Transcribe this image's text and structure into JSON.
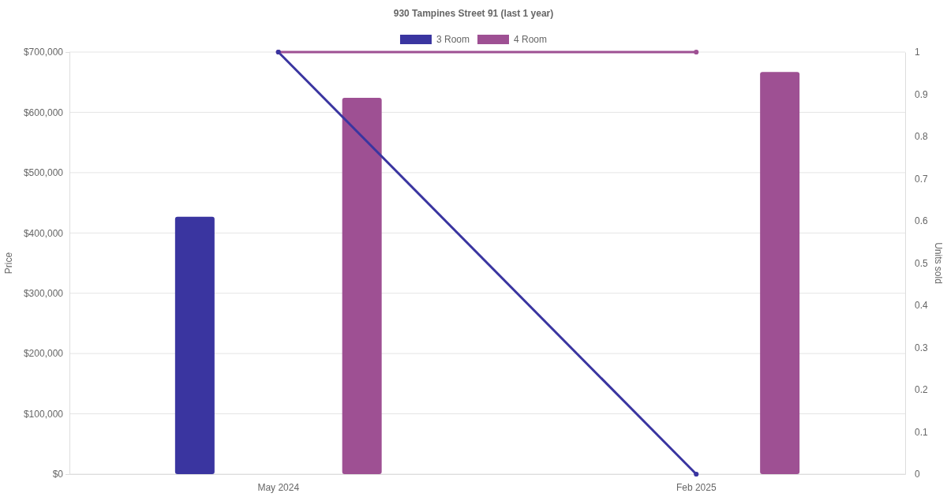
{
  "chart_data": {
    "type": "bar",
    "title": "930 Tampines Street 91 (last 1 year)",
    "ylabel": "Price",
    "y2label": "Units sold",
    "categories": [
      "May 2024",
      "Feb 2025"
    ],
    "series": [
      {
        "name": "3 Room",
        "color": "#3a35a0",
        "values": [
          427000,
          null
        ]
      },
      {
        "name": "4 Room",
        "color": "#9e5093",
        "values": [
          624000,
          667000
        ]
      },
      {
        "type": "line",
        "axis": "y2",
        "color": "#3a35a0",
        "values": [
          1,
          0
        ]
      },
      {
        "type": "line",
        "axis": "y2",
        "color": "#9e5093",
        "values": [
          1,
          1
        ]
      }
    ],
    "ylim": [
      0,
      700000
    ],
    "yticks": [
      {
        "value": 0,
        "label": "$0"
      },
      {
        "value": 100000,
        "label": "$100,000"
      },
      {
        "value": 200000,
        "label": "$200,000"
      },
      {
        "value": 300000,
        "label": "$300,000"
      },
      {
        "value": 400000,
        "label": "$400,000"
      },
      {
        "value": 500000,
        "label": "$500,000"
      },
      {
        "value": 600000,
        "label": "$600,000"
      },
      {
        "value": 700000,
        "label": "$700,000"
      }
    ],
    "y2lim": [
      0,
      1
    ],
    "y2ticks": [
      0,
      0.1,
      0.2,
      0.3,
      0.4,
      0.5,
      0.6,
      0.7,
      0.8,
      0.9,
      1
    ],
    "grid": "y",
    "legend": "top",
    "marker": "circle",
    "line_style": "solid"
  }
}
